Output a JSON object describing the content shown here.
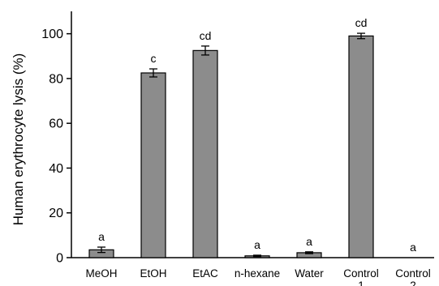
{
  "chart_data": {
    "type": "bar",
    "title": "",
    "xlabel": "",
    "ylabel": "Human erythrocyte lysis (%)",
    "ylim": [
      0,
      110
    ],
    "yticks": [
      0,
      20,
      40,
      60,
      80,
      100
    ],
    "grid": false,
    "legend": "none",
    "bar_color": "#8c8c8c",
    "categories": [
      "MeOH",
      "EtOH",
      "EtAC",
      "n-hexane",
      "Water",
      "Control 1",
      "Control 2"
    ],
    "values": [
      3.5,
      82.5,
      92.5,
      0.8,
      2.2,
      99,
      0
    ],
    "errors": [
      1.2,
      1.8,
      2.0,
      0.3,
      0.4,
      1.2,
      0
    ],
    "significance": [
      "a",
      "c",
      "cd",
      "a",
      "a",
      "cd",
      "a"
    ]
  }
}
